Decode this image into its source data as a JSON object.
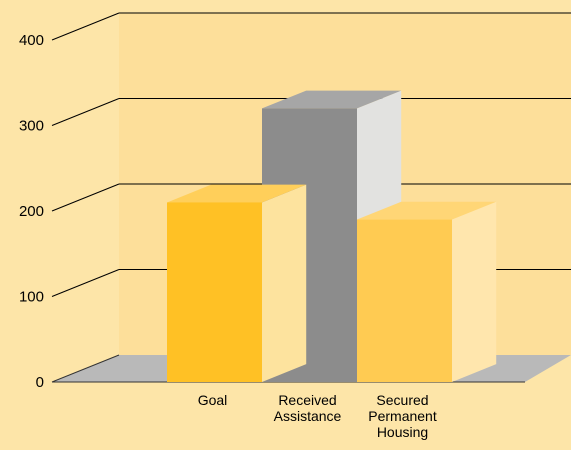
{
  "chart_data": {
    "type": "bar",
    "categories": [
      "Goal",
      "Received Assistance",
      "Secured Permanent Housing"
    ],
    "category_lines": [
      [
        "Goal"
      ],
      [
        "Received",
        "Assistance"
      ],
      [
        "Secured",
        "Permanent",
        "Housing"
      ]
    ],
    "values": [
      210,
      320,
      190
    ],
    "ylim": [
      0,
      400
    ],
    "yticks": [
      0,
      100,
      200,
      300,
      400
    ],
    "grid": true,
    "three_d": true,
    "colors": {
      "background": "#fde5a8",
      "wall": "#fddf9a",
      "floor": "#b9b9b9",
      "bars": [
        {
          "front": "#ffc125",
          "top": "#ffcf5a",
          "side": "#fde39e"
        },
        {
          "front": "#8c8c8c",
          "top": "#a6a6a6",
          "side": "#e2e2e0"
        },
        {
          "front": "#ffcb52",
          "top": "#ffd676",
          "side": "#ffe6ad"
        }
      ]
    }
  }
}
